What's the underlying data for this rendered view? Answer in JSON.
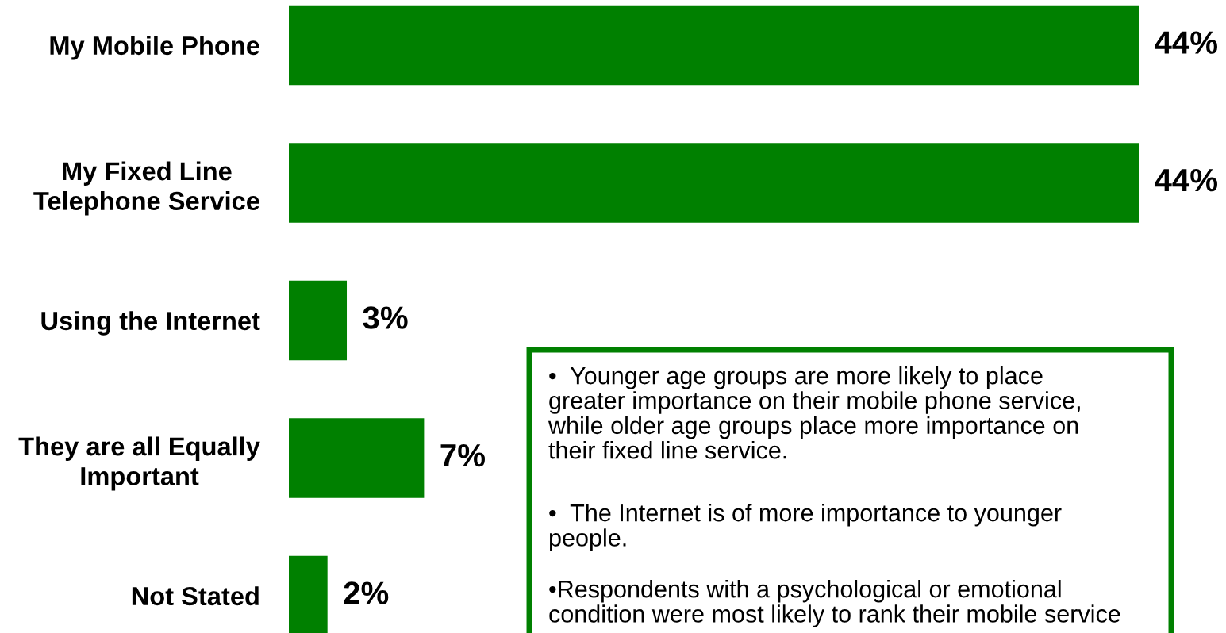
{
  "chart_data": {
    "type": "bar",
    "orientation": "horizontal",
    "categories": [
      "My Mobile Phone",
      "My Fixed Line\nTelephone Service",
      "Using the Internet",
      "They are all Equally\nImportant",
      "Not Stated"
    ],
    "values": [
      44,
      44,
      3,
      7,
      2
    ],
    "value_labels": [
      "44%",
      "44%",
      "3%",
      "7%",
      "2%"
    ],
    "color": "#008000",
    "grid": false,
    "annotations": [
      "•  Younger age groups are more likely to place\ngreater importance on their mobile phone service,\nwhile older age groups place more importance on\ntheir fixed line service.",
      "•  The Internet is of more importance to younger\npeople.",
      "•Respondents with a psychological or emotional\ncondition were most likely to rank their mobile service"
    ]
  }
}
